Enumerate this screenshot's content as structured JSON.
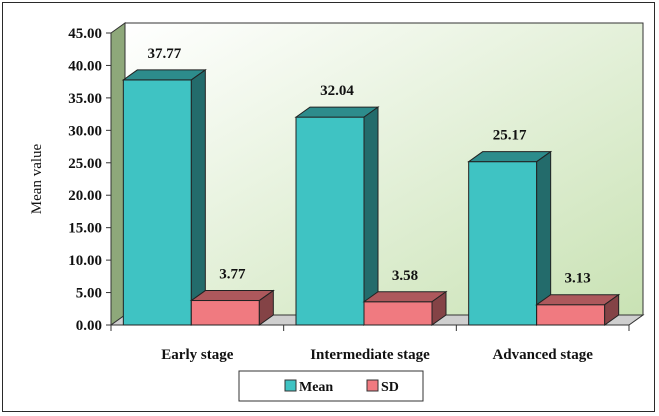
{
  "chart_data": {
    "type": "bar",
    "title": "",
    "xlabel": "",
    "ylabel": "Mean value",
    "ylim": [
      0,
      45
    ],
    "yticks": [
      "0.00",
      "5.00",
      "10.00",
      "15.00",
      "20.00",
      "25.00",
      "30.00",
      "35.00",
      "40.00",
      "45.00"
    ],
    "categories": [
      "Early stage",
      "Intermediate stage",
      "Advanced stage"
    ],
    "series": [
      {
        "name": "Mean",
        "values": [
          37.77,
          32.04,
          25.17
        ],
        "labels": [
          "37.77",
          "32.04",
          "25.17"
        ],
        "color": "#3fc3c3"
      },
      {
        "name": "SD",
        "values": [
          3.77,
          3.58,
          3.13
        ],
        "labels": [
          "3.77",
          "3.58",
          "3.13"
        ],
        "color": "#f07a80"
      }
    ],
    "grid": false,
    "legend_position": "bottom",
    "style": "3d-column",
    "plot_wall_color": "#d8ecc8"
  }
}
